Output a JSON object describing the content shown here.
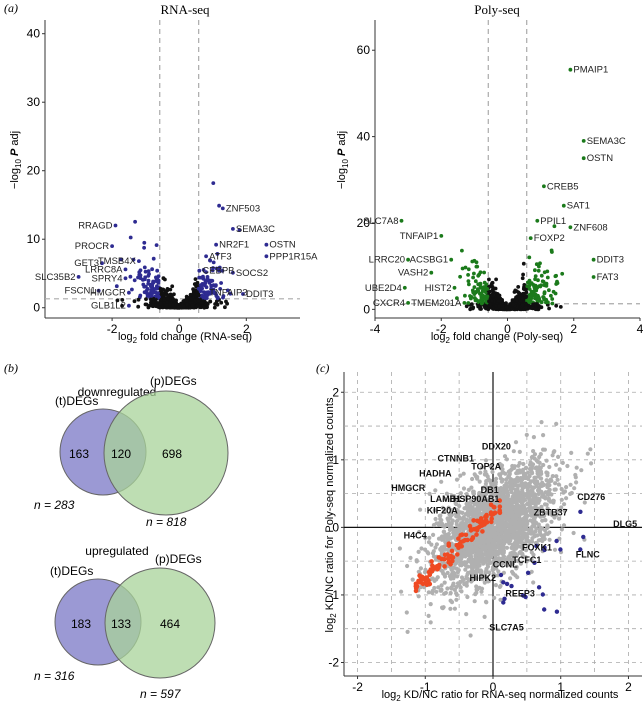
{
  "panel_labels": {
    "a": "(a)",
    "b": "(b)",
    "c": "(c)"
  },
  "colors": {
    "rna": "#2e2b91",
    "poly": "#1b7a1b",
    "grey": "#b0b0b0",
    "black": "#111111",
    "orange": "#ef4a23",
    "blue_venn": "#8a87cc",
    "green_venn": "#a8d39a",
    "overlap_venn": "#6f9a86"
  },
  "chart_data": [
    {
      "id": "rna_volcano",
      "type": "scatter",
      "title": "RNA-seq",
      "xlabel": "log2 fold change (RNA-seq)",
      "ylabel": "−log10 P adj",
      "xlim": [
        -4,
        3.6
      ],
      "ylim": [
        -1.5,
        42
      ],
      "x_ticks": [
        -2,
        0,
        2
      ],
      "y_ticks": [
        0,
        10,
        20,
        30,
        40
      ],
      "fc_cutoff": [
        -0.58,
        0.58
      ],
      "p_cutoff": 1.3,
      "labels": [
        {
          "text": "ZNF503",
          "x": 1.3,
          "y": 14.5
        },
        {
          "text": "SEMA3C",
          "x": 1.6,
          "y": 11.5
        },
        {
          "text": "NR2F1",
          "x": 1.1,
          "y": 9.2
        },
        {
          "text": "OSTN",
          "x": 2.6,
          "y": 9.2
        },
        {
          "text": "PPP1R15A",
          "x": 2.6,
          "y": 7.5
        },
        {
          "text": "ATF3",
          "x": 0.8,
          "y": 7.5
        },
        {
          "text": "CEBPB",
          "x": 0.6,
          "y": 5.4
        },
        {
          "text": "SOCS2",
          "x": 1.6,
          "y": 5.1
        },
        {
          "text": "TNFAIP3",
          "x": 0.8,
          "y": 2.2
        },
        {
          "text": "DDIT3",
          "x": 1.9,
          "y": 2.0
        },
        {
          "text": "RRAGD",
          "x": -1.9,
          "y": 12.0
        },
        {
          "text": "PROCR",
          "x": -2.0,
          "y": 9.0
        },
        {
          "text": "GET3",
          "x": -2.3,
          "y": 6.5
        },
        {
          "text": "SLC35B2",
          "x": -3.0,
          "y": 4.5
        },
        {
          "text": "FSCN1",
          "x": -2.4,
          "y": 2.5
        },
        {
          "text": "GLB1L2",
          "x": -1.5,
          "y": 0.3
        },
        {
          "text": "SPRY4",
          "x": -1.6,
          "y": 4.3
        },
        {
          "text": "HMGCR",
          "x": -1.5,
          "y": 2.2
        },
        {
          "text": "TMSB4X",
          "x": -1.2,
          "y": 6.8
        },
        {
          "text": "LRRC8A",
          "x": -1.6,
          "y": 5.6
        }
      ]
    },
    {
      "id": "poly_volcano",
      "type": "scatter",
      "title": "Poly-seq",
      "xlabel": "log2 fold change (Poly-seq)",
      "ylabel": "−log10 P adj",
      "xlim": [
        -4,
        4
      ],
      "ylim": [
        -2,
        67
      ],
      "x_ticks": [
        -4,
        -2,
        0,
        2,
        4
      ],
      "y_ticks": [
        0,
        20,
        40,
        60
      ],
      "fc_cutoff": [
        -0.58,
        0.58
      ],
      "p_cutoff": 1.3,
      "labels": [
        {
          "text": "PMAIP1",
          "x": 1.9,
          "y": 55.5
        },
        {
          "text": "SEMA3C",
          "x": 2.3,
          "y": 39.0
        },
        {
          "text": "OSTN",
          "x": 2.3,
          "y": 35.0
        },
        {
          "text": "CREB5",
          "x": 1.1,
          "y": 28.5
        },
        {
          "text": "SAT1",
          "x": 1.7,
          "y": 24.0
        },
        {
          "text": "ZNF608",
          "x": 1.9,
          "y": 19.0
        },
        {
          "text": "PPIL1",
          "x": 0.9,
          "y": 20.5
        },
        {
          "text": "FOXP2",
          "x": 0.7,
          "y": 16.5
        },
        {
          "text": "DDIT3",
          "x": 2.6,
          "y": 11.5
        },
        {
          "text": "FAT3",
          "x": 2.6,
          "y": 7.5
        },
        {
          "text": "SLC7A8",
          "x": -3.2,
          "y": 20.5
        },
        {
          "text": "TNFAIP1",
          "x": -2.0,
          "y": 17.0
        },
        {
          "text": "LRRC20",
          "x": -3.0,
          "y": 11.5
        },
        {
          "text": "ACSBG1",
          "x": -1.7,
          "y": 11.5
        },
        {
          "text": "VASH2",
          "x": -2.3,
          "y": 8.5
        },
        {
          "text": "UBE2D4",
          "x": -3.1,
          "y": 5.0
        },
        {
          "text": "HIST2",
          "x": -1.6,
          "y": 5.0
        },
        {
          "text": "CXCR4",
          "x": -3.0,
          "y": 1.5
        },
        {
          "text": "TMEM201A",
          "x": -1.3,
          "y": 1.5
        }
      ]
    },
    {
      "id": "kd_nc_scatter",
      "type": "scatter",
      "xlabel": "log2 KD/NC ratio for RNA-seq normalized counts",
      "ylabel": "log2 KD/NC ratio for Poly-seq normalized counts",
      "xlim": [
        -2.2,
        2.2
      ],
      "ylim": [
        -2.2,
        2.3
      ],
      "x_ticks": [
        -2,
        -1,
        0,
        1,
        2
      ],
      "y_ticks": [
        -2,
        -1,
        0,
        1,
        2
      ],
      "labels": [
        {
          "text": "DDX20",
          "x": 0.05,
          "y": 1.2
        },
        {
          "text": "CTNNB1",
          "x": -0.55,
          "y": 1.02
        },
        {
          "text": "TOP2A",
          "x": -0.1,
          "y": 0.9
        },
        {
          "text": "HADHA",
          "x": -0.85,
          "y": 0.8
        },
        {
          "text": "HMGCR",
          "x": -1.25,
          "y": 0.58
        },
        {
          "text": "DB1",
          "x": -0.05,
          "y": 0.55
        },
        {
          "text": "LAMB1",
          "x": -0.7,
          "y": 0.42
        },
        {
          "text": "HSP90AB1",
          "x": -0.25,
          "y": 0.42
        },
        {
          "text": "KIF20A",
          "x": -0.75,
          "y": 0.25
        },
        {
          "text": "H4C4",
          "x": -1.15,
          "y": -0.12
        },
        {
          "text": "ZBTB37",
          "x": 0.85,
          "y": 0.22
        },
        {
          "text": "CD276",
          "x": 1.45,
          "y": 0.45
        },
        {
          "text": "DLG5",
          "x": 1.95,
          "y": 0.05
        },
        {
          "text": "FOXK1",
          "x": 0.65,
          "y": -0.3
        },
        {
          "text": "FLNC",
          "x": 1.4,
          "y": -0.4
        },
        {
          "text": "TCFC1",
          "x": 0.5,
          "y": -0.48
        },
        {
          "text": "CCNL",
          "x": 0.18,
          "y": -0.55
        },
        {
          "text": "HIPK2",
          "x": -0.15,
          "y": -0.75
        },
        {
          "text": "REEP3",
          "x": 0.4,
          "y": -0.98
        },
        {
          "text": "SLC7A5",
          "x": 0.2,
          "y": -1.48
        }
      ]
    }
  ],
  "venn": {
    "down": {
      "title": "downregulated",
      "left_label": "(t)DEGs",
      "right_label": "(p)DEGs",
      "left_only": "163",
      "overlap": "120",
      "right_only": "698",
      "left_n": "n = 283",
      "right_n": "n = 818"
    },
    "up": {
      "title": "upregulated",
      "left_label": "(t)DEGs",
      "right_label": "(p)DEGs",
      "left_only": "183",
      "overlap": "133",
      "right_only": "464",
      "left_n": "n = 316",
      "right_n": "n = 597"
    }
  }
}
